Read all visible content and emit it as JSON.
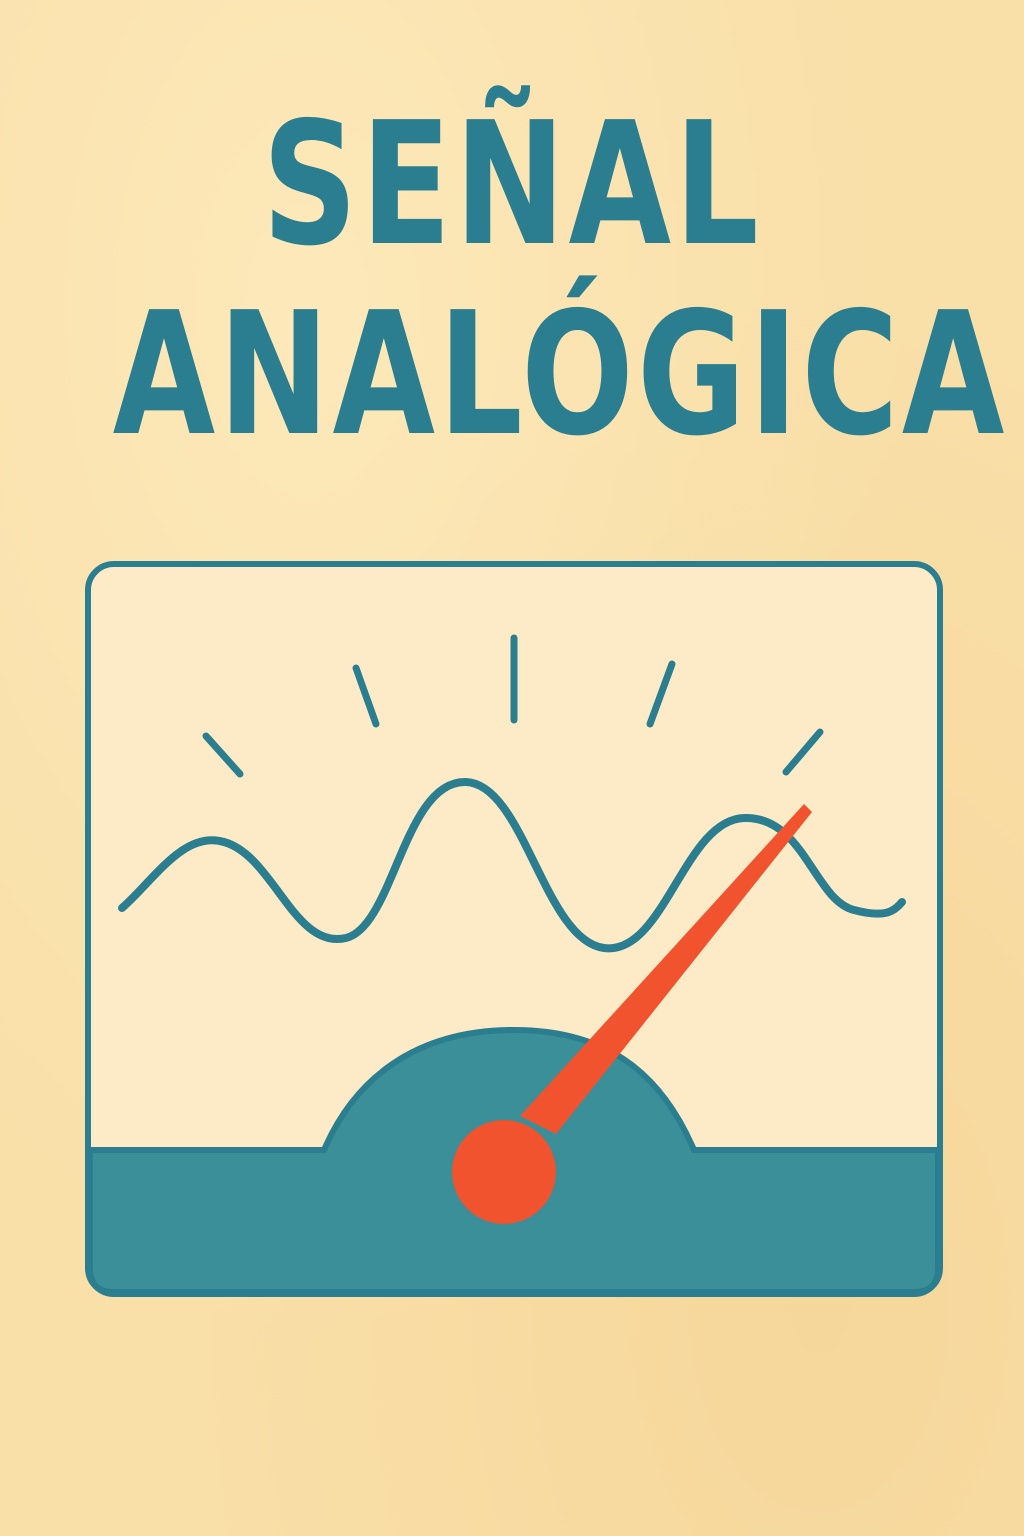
{
  "title": {
    "line1": "SEÑAL",
    "line2": "ANALÓGICA"
  },
  "meter": {
    "needle_position": 0.82,
    "scale_ticks": 5,
    "wave_label": ""
  },
  "colors": {
    "background": "#f9dfa8",
    "ink": "#2a7e8f",
    "face": "#fcebc6",
    "base": "#3a8f99",
    "needle": "#f0532e"
  },
  "icons": {
    "meter": "analog-meter-icon",
    "wave": "sine-wave-icon",
    "needle": "gauge-needle-icon"
  }
}
